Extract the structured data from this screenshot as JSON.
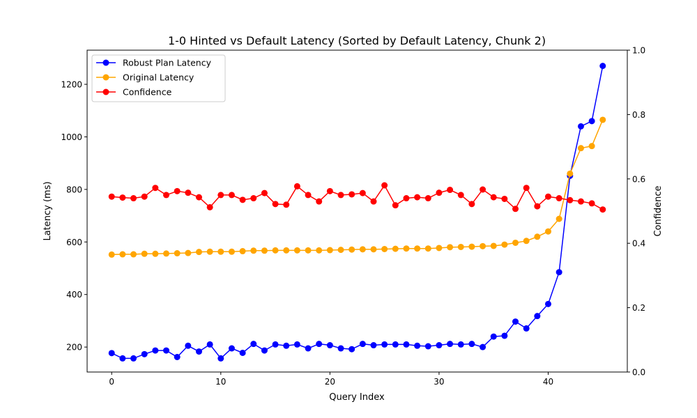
{
  "chart_data": {
    "type": "line",
    "title": "1-0 Hinted vs Default Latency (Sorted by Default Latency, Chunk 2)",
    "xlabel": "Query Index",
    "ylabel": "Latency (ms)",
    "y2label": "Confidence",
    "xlim": [
      -2.25,
      47.25
    ],
    "ylim": [
      105,
      1330
    ],
    "y2lim": [
      0,
      1
    ],
    "xticks": [
      0,
      10,
      20,
      30,
      40
    ],
    "yticks": [
      200,
      400,
      600,
      800,
      1000,
      1200
    ],
    "y2ticks": [
      "0.0",
      "0.2",
      "0.4",
      "0.6",
      "0.8",
      "1.0"
    ],
    "grid": false,
    "legend_position": "top-left",
    "x": [
      0,
      1,
      2,
      3,
      4,
      5,
      6,
      7,
      8,
      9,
      10,
      11,
      12,
      13,
      14,
      15,
      16,
      17,
      18,
      19,
      20,
      21,
      22,
      23,
      24,
      25,
      26,
      27,
      28,
      29,
      30,
      31,
      32,
      33,
      34,
      35,
      36,
      37,
      38,
      39,
      40,
      41,
      42,
      43,
      44,
      45
    ],
    "series": [
      {
        "name": "Robust Plan Latency",
        "axis": "left",
        "color": "#0000ff",
        "values": [
          177,
          157,
          157,
          173,
          187,
          187,
          162,
          205,
          183,
          210,
          157,
          195,
          178,
          212,
          187,
          210,
          205,
          210,
          195,
          212,
          207,
          195,
          192,
          212,
          207,
          210,
          210,
          210,
          205,
          203,
          207,
          212,
          210,
          212,
          200,
          240,
          243,
          297,
          271,
          318,
          364,
          485,
          852,
          1040,
          1060,
          1270
        ]
      },
      {
        "name": "Original Latency",
        "axis": "left",
        "color": "#ffa500",
        "values": [
          552,
          553,
          553,
          555,
          555,
          556,
          557,
          558,
          562,
          563,
          563,
          563,
          565,
          567,
          567,
          568,
          568,
          568,
          568,
          568,
          569,
          570,
          571,
          572,
          572,
          573,
          574,
          575,
          575,
          575,
          577,
          580,
          581,
          582,
          584,
          585,
          590,
          597,
          604,
          620,
          640,
          688,
          860,
          957,
          965,
          1065
        ]
      },
      {
        "name": "Confidence",
        "axis": "right",
        "color": "#ff0000",
        "values": [
          0.545,
          0.542,
          0.54,
          0.545,
          0.572,
          0.55,
          0.562,
          0.557,
          0.543,
          0.512,
          0.55,
          0.55,
          0.535,
          0.54,
          0.556,
          0.522,
          0.52,
          0.577,
          0.55,
          0.53,
          0.562,
          0.55,
          0.552,
          0.556,
          0.53,
          0.58,
          0.518,
          0.54,
          0.543,
          0.54,
          0.557,
          0.566,
          0.55,
          0.522,
          0.567,
          0.543,
          0.538,
          0.507,
          0.572,
          0.515,
          0.545,
          0.54,
          0.534,
          0.53,
          0.524,
          0.505
        ]
      }
    ]
  }
}
